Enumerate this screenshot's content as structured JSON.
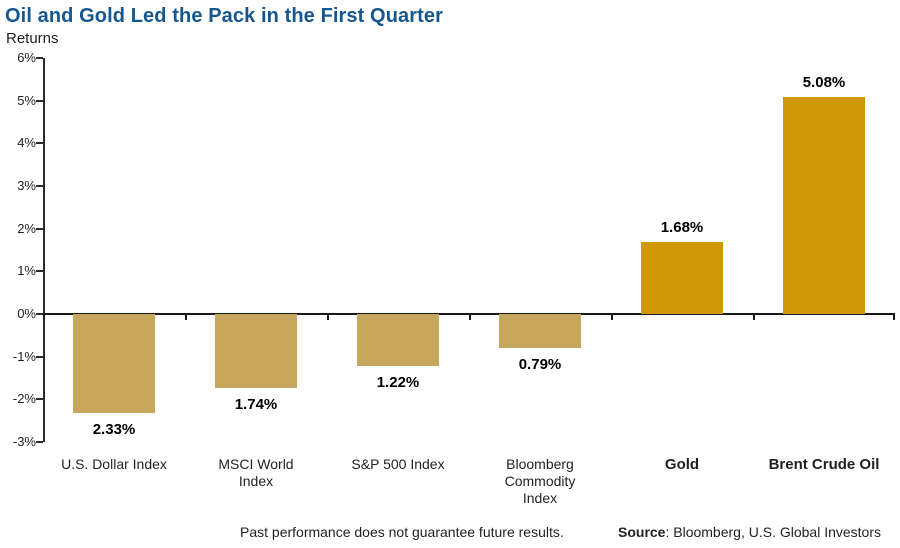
{
  "header": {
    "title": "Oil and Gold Led the Pack in the First Quarter",
    "subtitle": "Returns"
  },
  "chart_data": {
    "type": "bar",
    "title": "Oil and Gold Led the Pack in the First Quarter",
    "subtitle": "Returns",
    "categories": [
      [
        "U.S. Dollar Index"
      ],
      [
        "MSCI World",
        "Index"
      ],
      [
        "S&P 500 Index"
      ],
      [
        "Bloomberg",
        "Commodity",
        "Index"
      ],
      [
        "Gold"
      ],
      [
        "Brent Crude Oil"
      ]
    ],
    "category_bold": [
      false,
      false,
      false,
      false,
      true,
      true
    ],
    "values": [
      -2.33,
      -1.74,
      -1.22,
      -0.79,
      1.68,
      5.08
    ],
    "value_labels": [
      "2.33%",
      "1.74%",
      "1.22%",
      "0.79%",
      "1.68%",
      "5.08%"
    ],
    "ylim": [
      -3,
      6
    ],
    "ytick_values": [
      6,
      5,
      4,
      3,
      2,
      1,
      0,
      -1,
      -2,
      -3
    ],
    "yticks": [
      "6%",
      "5%",
      "4%",
      "3%",
      "2%",
      "1%",
      "0%",
      "-1%",
      "-2%",
      "-3%"
    ],
    "grid": false,
    "legend": null,
    "colors": {
      "positive": "#D09806",
      "negative": "#C6A75B",
      "axis": "#2B2B2B",
      "zero_line": "#1A1A1A",
      "title": "#15578F",
      "text": "#231F20"
    }
  },
  "footer": {
    "disclaimer": "Past performance does not guarantee future results.",
    "source_label": "Source",
    "source_rest": ": Bloomberg, U.S. Global Investors"
  }
}
